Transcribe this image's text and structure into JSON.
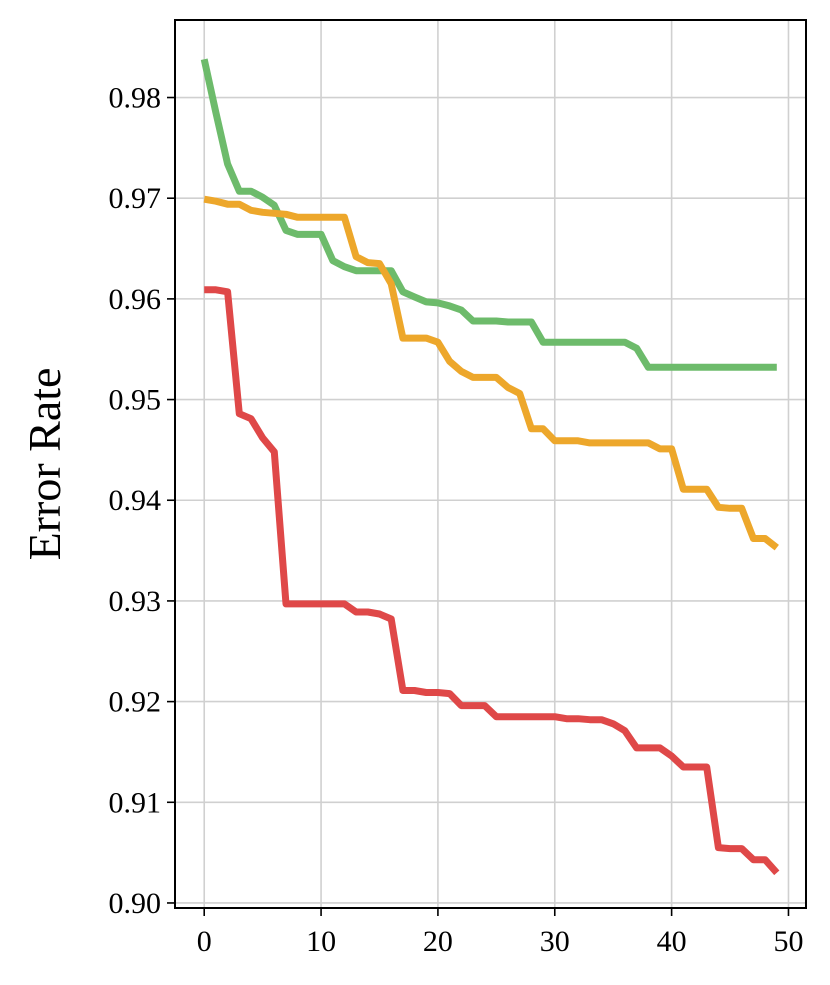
{
  "chart_data": {
    "type": "line",
    "title": "",
    "xlabel": "",
    "ylabel": "Error Rate",
    "xlim": [
      -2.5,
      51.5
    ],
    "ylim": [
      0.8995,
      0.9877
    ],
    "xticks": [
      0,
      10,
      20,
      30,
      40,
      50
    ],
    "xtick_labels": [
      "0",
      "10",
      "20",
      "30",
      "40",
      "50"
    ],
    "yticks": [
      0.9,
      0.91,
      0.92,
      0.93,
      0.94,
      0.95,
      0.96,
      0.97,
      0.98
    ],
    "ytick_labels": [
      "0.90",
      "0.91",
      "0.92",
      "0.93",
      "0.94",
      "0.95",
      "0.96",
      "0.97",
      "0.98"
    ],
    "grid": true,
    "legend": false,
    "series": [
      {
        "color": "#6dbb6b",
        "x": [
          0,
          1,
          2,
          3,
          4,
          5,
          6,
          7,
          8,
          9,
          10,
          11,
          12,
          13,
          14,
          15,
          16,
          17,
          18,
          19,
          20,
          21,
          22,
          23,
          24,
          25,
          26,
          27,
          28,
          29,
          30,
          31,
          32,
          33,
          34,
          35,
          36,
          37,
          38,
          39,
          40,
          41,
          42,
          43,
          44,
          45,
          46,
          47,
          48,
          49
        ],
        "values": [
          0.9838,
          0.9785,
          0.9734,
          0.9707,
          0.9707,
          0.9701,
          0.9693,
          0.9668,
          0.9664,
          0.9664,
          0.9664,
          0.9638,
          0.9632,
          0.9628,
          0.9628,
          0.9628,
          0.9628,
          0.9607,
          0.9602,
          0.9597,
          0.9596,
          0.9593,
          0.9589,
          0.9578,
          0.9578,
          0.9578,
          0.9577,
          0.9577,
          0.9577,
          0.9557,
          0.9557,
          0.9557,
          0.9557,
          0.9557,
          0.9557,
          0.9557,
          0.9557,
          0.9551,
          0.9532,
          0.9532,
          0.9532,
          0.9532,
          0.9532,
          0.9532,
          0.9532,
          0.9532,
          0.9532,
          0.9532,
          0.9532,
          0.9532
        ]
      },
      {
        "color": "#eda72b",
        "x": [
          0,
          1,
          2,
          3,
          4,
          5,
          6,
          7,
          8,
          9,
          10,
          11,
          12,
          13,
          14,
          15,
          16,
          17,
          18,
          19,
          20,
          21,
          22,
          23,
          24,
          25,
          26,
          27,
          28,
          29,
          30,
          31,
          32,
          33,
          34,
          35,
          36,
          37,
          38,
          39,
          40,
          41,
          42,
          43,
          44,
          45,
          46,
          47,
          48,
          49
        ],
        "values": [
          0.9699,
          0.9697,
          0.9694,
          0.9694,
          0.9688,
          0.9686,
          0.9685,
          0.9684,
          0.9681,
          0.9681,
          0.9681,
          0.9681,
          0.9681,
          0.9642,
          0.9636,
          0.9635,
          0.9615,
          0.9561,
          0.9561,
          0.9561,
          0.9557,
          0.9538,
          0.9528,
          0.9522,
          0.9522,
          0.9522,
          0.9512,
          0.9506,
          0.9471,
          0.9471,
          0.9459,
          0.9459,
          0.9459,
          0.9457,
          0.9457,
          0.9457,
          0.9457,
          0.9457,
          0.9457,
          0.9451,
          0.9451,
          0.9411,
          0.9411,
          0.9411,
          0.9393,
          0.9392,
          0.9392,
          0.9362,
          0.9362,
          0.9353
        ]
      },
      {
        "color": "#df4848",
        "x": [
          0,
          1,
          2,
          3,
          4,
          5,
          6,
          7,
          8,
          9,
          10,
          11,
          12,
          13,
          14,
          15,
          16,
          17,
          18,
          19,
          20,
          21,
          22,
          23,
          24,
          25,
          26,
          27,
          28,
          29,
          30,
          31,
          32,
          33,
          34,
          35,
          36,
          37,
          38,
          39,
          40,
          41,
          42,
          43,
          44,
          45,
          46,
          47,
          48,
          49
        ],
        "values": [
          0.9609,
          0.9609,
          0.9607,
          0.9486,
          0.9481,
          0.9462,
          0.9448,
          0.9297,
          0.9297,
          0.9297,
          0.9297,
          0.9297,
          0.9297,
          0.9289,
          0.9289,
          0.9287,
          0.9282,
          0.9211,
          0.9211,
          0.9209,
          0.9209,
          0.9208,
          0.9196,
          0.9196,
          0.9196,
          0.9185,
          0.9185,
          0.9185,
          0.9185,
          0.9185,
          0.9185,
          0.9183,
          0.9183,
          0.9182,
          0.9182,
          0.9178,
          0.9171,
          0.9154,
          0.9154,
          0.9154,
          0.9146,
          0.9135,
          0.9135,
          0.9135,
          0.9055,
          0.9054,
          0.9054,
          0.9043,
          0.9043,
          0.903
        ]
      }
    ]
  }
}
